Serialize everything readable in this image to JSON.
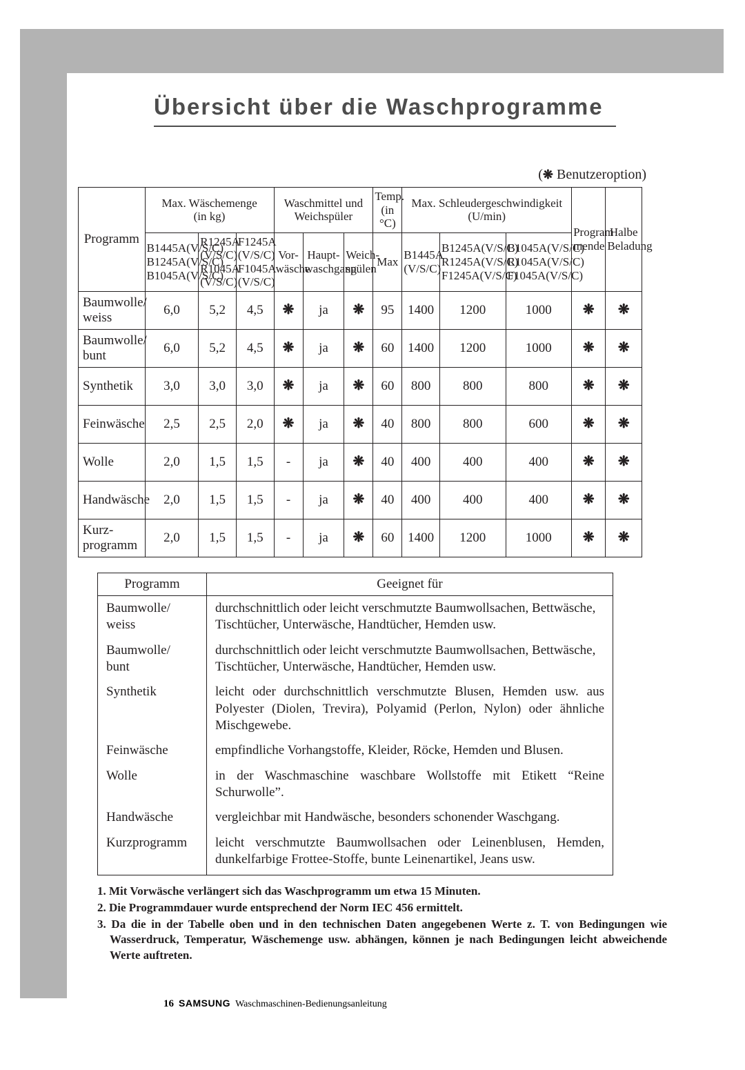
{
  "title": "Übersicht über die Waschprogramme",
  "option_note": "Benutzeroption",
  "star": "❋",
  "headers": {
    "program": "Programm",
    "max_load": "Max. Wäschemenge",
    "max_load_unit": "(in kg)",
    "detergent": "Waschmittel und",
    "softener": "Weichspüler",
    "temp": "Temp.",
    "temp_unit": "(in °C)",
    "max_spin": "Max. Schleudergeschwindigkeit",
    "spin_unit": "(U/min)",
    "program_end": "Program",
    "program_end2": "mende",
    "half_load": "Halbe",
    "half_load2": "Beladung",
    "load_cols": {
      "c1a": "B1445A(V/S/C)",
      "c1b": "B1245A(V/S/C)",
      "c1c": "B1045A(V/S/C)",
      "c2a": "R1245A",
      "c2b": "(V/S/C)",
      "c2c": "R1045A",
      "c2d": "(V/S/C)",
      "c3a": "F1245A",
      "c3b": "(V/S/C)",
      "c3c": "F1045A",
      "c3d": "(V/S/C)"
    },
    "det_cols": {
      "c1a": "Vor-",
      "c1b": "wäsche",
      "c2a": "Haupt-",
      "c2b": "waschgang",
      "c3a": "Weich-",
      "c3b": "spülen"
    },
    "temp_sub": "Max",
    "spin_cols": {
      "c1a": "B1445A",
      "c1b": "(V/S/C)",
      "c2a": "B1245A(V/S/C)",
      "c2b": "R1245A(V/S/C)",
      "c2c": "F1245A(V/S/C)",
      "c3a": "B1045A(V/S/C)",
      "c3b": "R1045A(V/S/C)",
      "c3c": "F1045A(V/S/C)"
    }
  },
  "rows": [
    {
      "prog_l1": "Baumwolle/",
      "prog_l2": "weiss",
      "l1": "6,0",
      "l2": "5,2",
      "l3": "4,5",
      "d1": "❋",
      "d2": "ja",
      "d3": "❋",
      "temp": "95",
      "s1": "1400",
      "s2": "1200",
      "s3": "1000",
      "pe": "❋",
      "hl": "❋"
    },
    {
      "prog_l1": "Baumwolle/",
      "prog_l2": "bunt",
      "l1": "6,0",
      "l2": "5,2",
      "l3": "4,5",
      "d1": "❋",
      "d2": "ja",
      "d3": "❋",
      "temp": "60",
      "s1": "1400",
      "s2": "1200",
      "s3": "1000",
      "pe": "❋",
      "hl": "❋"
    },
    {
      "prog_l1": "Synthetik",
      "prog_l2": "",
      "l1": "3,0",
      "l2": "3,0",
      "l3": "3,0",
      "d1": "❋",
      "d2": "ja",
      "d3": "❋",
      "temp": "60",
      "s1": "800",
      "s2": "800",
      "s3": "800",
      "pe": "❋",
      "hl": "❋"
    },
    {
      "prog_l1": "Feinwäsche",
      "prog_l2": "",
      "l1": "2,5",
      "l2": "2,5",
      "l3": "2,0",
      "d1": "❋",
      "d2": "ja",
      "d3": "❋",
      "temp": "40",
      "s1": "800",
      "s2": "800",
      "s3": "600",
      "pe": "❋",
      "hl": "❋"
    },
    {
      "prog_l1": "Wolle",
      "prog_l2": "",
      "l1": "2,0",
      "l2": "1,5",
      "l3": "1,5",
      "d1": "-",
      "d2": "ja",
      "d3": "❋",
      "temp": "40",
      "s1": "400",
      "s2": "400",
      "s3": "400",
      "pe": "❋",
      "hl": "❋"
    },
    {
      "prog_l1": "Handwäsche",
      "prog_l2": "",
      "l1": "2,0",
      "l2": "1,5",
      "l3": "1,5",
      "d1": "-",
      "d2": "ja",
      "d3": "❋",
      "temp": "40",
      "s1": "400",
      "s2": "400",
      "s3": "400",
      "pe": "❋",
      "hl": "❋"
    },
    {
      "prog_l1": "Kurz-",
      "prog_l2": "programm",
      "l1": "2,0",
      "l2": "1,5",
      "l3": "1,5",
      "d1": "-",
      "d2": "ja",
      "d3": "❋",
      "temp": "60",
      "s1": "1400",
      "s2": "1200",
      "s3": "1000",
      "pe": "❋",
      "hl": "❋"
    }
  ],
  "suit_headers": {
    "program": "Programm",
    "for": "Geeignet für"
  },
  "suit_rows": [
    {
      "p1": "Baumwolle/",
      "p2": "weiss",
      "t": "durchschnittlich oder leicht verschmutzte Baumwollsachen, Bettwäsche, Tischtücher, Unterwäsche, Handtücher, Hemden usw."
    },
    {
      "p1": "Baumwolle/",
      "p2": "bunt",
      "t": "durchschnittlich oder leicht verschmutzte Baumwollsachen, Bettwäsche, Tischtücher, Unterwäsche, Handtücher, Hemden usw."
    },
    {
      "p1": "Synthetik",
      "p2": "",
      "t": "leicht oder durchschnittlich verschmutzte Blusen, Hemden usw. aus Polyester (Diolen, Trevira), Polyamid (Perlon, Nylon) oder ähnliche Mischgewebe."
    },
    {
      "p1": "Feinwäsche",
      "p2": "",
      "t": "empfindliche Vorhangstoffe, Kleider, Röcke, Hemden und Blusen."
    },
    {
      "p1": "Wolle",
      "p2": "",
      "t": "in der Waschmaschine waschbare Wollstoffe mit Etikett “Reine Schurwolle”."
    },
    {
      "p1": "Handwäsche",
      "p2": "",
      "t": "vergleichbar mit Handwäsche, besonders schonender Waschgang."
    },
    {
      "p1": "Kurzprogramm",
      "p2": "",
      "t": "leicht verschmutzte Baumwollsachen oder Leinenblusen, Hemden, dunkelfarbige Frottee-Stoffe, bunte Leinenartikel, Jeans usw."
    }
  ],
  "notes": {
    "n1": "1. Mit Vorwäsche verlängert sich das Waschprogramm um etwa 15 Minuten.",
    "n2": "2. Die Programmdauer wurde entsprechend der Norm IEC 456 ermittelt.",
    "n3": "3. Da die in der Tabelle oben und in den technischen Daten angegebenen Werte z. T. von Bedingungen wie Wasserdruck, Temperatur, Wäschemenge usw. abhängen, können je nach Bedingungen leicht abweichende Werte auftreten."
  },
  "footer": {
    "page": "16",
    "brand": "SAMSUNG",
    "text": "Waschmaschinen-Bedienungsanleitung"
  },
  "colwidths": {
    "main": [
      92,
      74,
      52,
      52,
      40,
      57,
      40,
      40,
      52,
      91,
      91,
      47,
      50
    ]
  },
  "colors": {
    "frame": "#b3b3b3",
    "title": "#4d4d4d",
    "text": "#231f20",
    "bg": "#ffffff",
    "border": "#231f20"
  }
}
